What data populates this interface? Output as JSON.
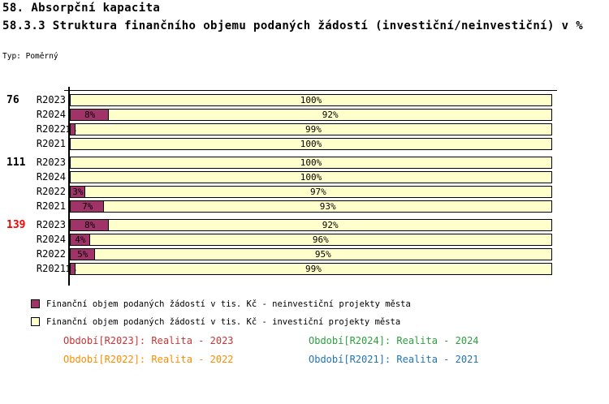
{
  "title": "58. Absorpční kapacita",
  "subtitle": "58.3.3 Struktura finančního objemu podaných žádostí (investiční/neinvestiční) v %",
  "type_label": "Typ: Poměrný",
  "colors": {
    "neinvesticni": "#A03468",
    "investicni": "#FFFFCC",
    "axis": "#000000",
    "group_highlight": "#FF0000"
  },
  "chart_data": {
    "type": "bar",
    "orientation": "horizontal",
    "stacked": true,
    "value_unit": "%",
    "x_range": [
      0,
      100
    ],
    "series": [
      {
        "name": "Finanční objem podaných žádostí v tis. Kč - neinvestiční projekty města",
        "color": "#A03468"
      },
      {
        "name": "Finanční objem podaných žádostí v tis. Kč - investiční projekty města",
        "color": "#FFFFCC"
      }
    ],
    "groups": [
      {
        "label": "76",
        "label_color": "#000000",
        "rows": [
          {
            "period": "R2023",
            "values": {
              "neinvesticni": 0,
              "investicni": 100
            },
            "labels": {
              "neinvesticni": "",
              "investicni": "100%"
            }
          },
          {
            "period": "R2024",
            "values": {
              "neinvesticni": 8,
              "investicni": 92
            },
            "labels": {
              "neinvesticni": "8%",
              "investicni": "92%"
            }
          },
          {
            "period": "R2022",
            "values": {
              "neinvesticni": 1,
              "investicni": 99
            },
            "labels": {
              "neinvesticni": "1%",
              "investicni": "99%"
            }
          },
          {
            "period": "R2021",
            "values": {
              "neinvesticni": 0,
              "investicni": 100
            },
            "labels": {
              "neinvesticni": "",
              "investicni": "100%"
            }
          }
        ]
      },
      {
        "label": "111",
        "label_color": "#000000",
        "rows": [
          {
            "period": "R2023",
            "values": {
              "neinvesticni": 0,
              "investicni": 100
            },
            "labels": {
              "neinvesticni": "",
              "investicni": "100%"
            }
          },
          {
            "period": "R2024",
            "values": {
              "neinvesticni": 0,
              "investicni": 100
            },
            "labels": {
              "neinvesticni": "",
              "investicni": "100%"
            }
          },
          {
            "period": "R2022",
            "values": {
              "neinvesticni": 3,
              "investicni": 97
            },
            "labels": {
              "neinvesticni": "3%",
              "investicni": "97%"
            }
          },
          {
            "period": "R2021",
            "values": {
              "neinvesticni": 7,
              "investicni": 93
            },
            "labels": {
              "neinvesticni": "7%",
              "investicni": "93%"
            }
          }
        ]
      },
      {
        "label": "139",
        "label_color": "#FF0000",
        "rows": [
          {
            "period": "R2023",
            "values": {
              "neinvesticni": 8,
              "investicni": 92
            },
            "labels": {
              "neinvesticni": "8%",
              "investicni": "92%"
            }
          },
          {
            "period": "R2024",
            "values": {
              "neinvesticni": 4,
              "investicni": 96
            },
            "labels": {
              "neinvesticni": "4%",
              "investicni": "96%"
            }
          },
          {
            "period": "R2022",
            "values": {
              "neinvesticni": 5,
              "investicni": 95
            },
            "labels": {
              "neinvesticni": "5%",
              "investicni": "95%"
            }
          },
          {
            "period": "R2021",
            "values": {
              "neinvesticni": 1,
              "investicni": 99
            },
            "labels": {
              "neinvesticni": "1%",
              "investicni": "99%"
            }
          }
        ]
      }
    ]
  },
  "legend": [
    {
      "color": "#A03468",
      "label": "Finanční objem podaných žádostí v tis. Kč - neinvestiční projekty města"
    },
    {
      "color": "#FFFFCC",
      "label": "Finanční objem podaných žádostí v tis. Kč - investiční projekty města"
    }
  ],
  "periods_footer": [
    {
      "code": "R2023",
      "text": "Období[R2023]: Realita - 2023",
      "color": "#CC3333"
    },
    {
      "code": "R2024",
      "text": "Období[R2024]: Realita - 2024",
      "color": "#2E9E40"
    },
    {
      "code": "R2022",
      "text": "Období[R2022]: Realita - 2022",
      "color": "#FF8C00"
    },
    {
      "code": "R2021",
      "text": "Období[R2021]: Realita - 2021",
      "color": "#2274B5"
    }
  ]
}
